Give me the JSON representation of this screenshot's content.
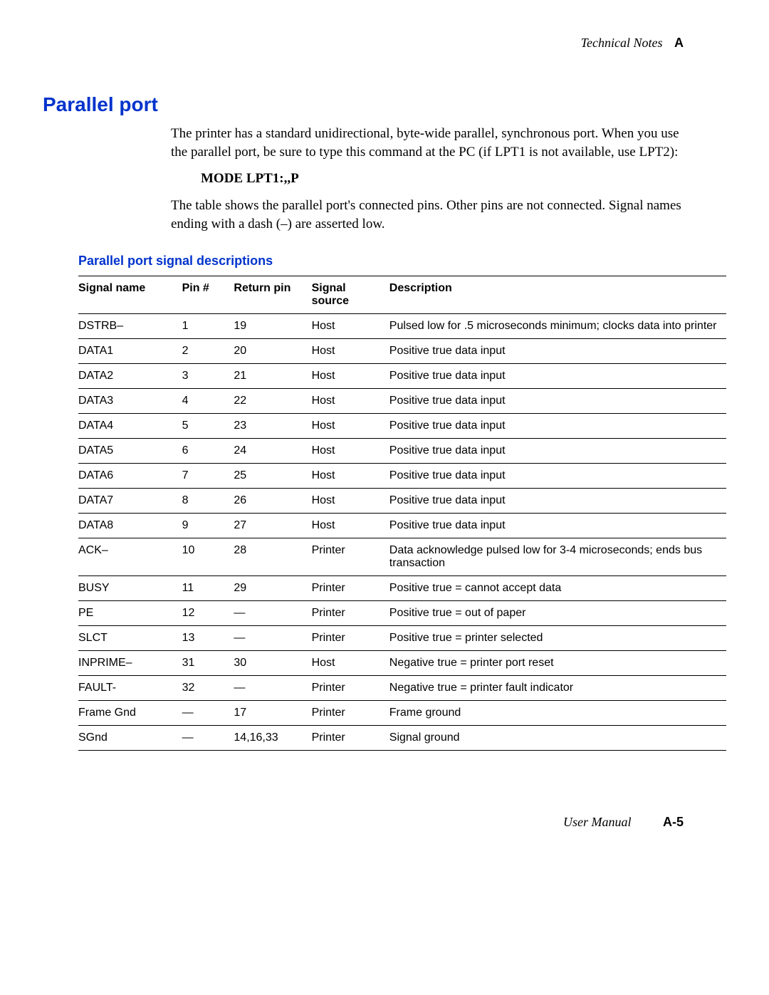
{
  "header": {
    "title": "Technical Notes",
    "appendix": "A"
  },
  "heading": "Parallel port",
  "intro_para": "The printer has a standard unidirectional, byte-wide parallel, synchronous port.  When you use the parallel port, be sure to type this command at the PC (if LPT1 is not available, use LPT2):",
  "mode_cmd": "MODE LPT1:,,P",
  "table_intro": "The table shows the parallel port's connected pins.  Other pins are not connected.  Signal names ending with a dash (–) are asserted low.",
  "table_caption": "Parallel port signal descriptions",
  "columns": {
    "c0": "Signal name",
    "c1": "Pin #",
    "c2": "Return pin",
    "c3": "Signal source",
    "c4": "Description"
  },
  "rows": [
    {
      "name": "DSTRB–",
      "pin": "1",
      "ret": "19",
      "src": "Host",
      "desc": "Pulsed low for .5 microseconds minimum; clocks data into printer"
    },
    {
      "name": "DATA1",
      "pin": "2",
      "ret": "20",
      "src": "Host",
      "desc": "Positive true data input"
    },
    {
      "name": "DATA2",
      "pin": "3",
      "ret": "21",
      "src": "Host",
      "desc": "Positive true data input"
    },
    {
      "name": "DATA3",
      "pin": "4",
      "ret": "22",
      "src": "Host",
      "desc": "Positive true data input"
    },
    {
      "name": "DATA4",
      "pin": "5",
      "ret": "23",
      "src": "Host",
      "desc": "Positive true data input"
    },
    {
      "name": "DATA5",
      "pin": "6",
      "ret": "24",
      "src": "Host",
      "desc": "Positive true data input"
    },
    {
      "name": "DATA6",
      "pin": "7",
      "ret": "25",
      "src": "Host",
      "desc": "Positive true data input"
    },
    {
      "name": "DATA7",
      "pin": "8",
      "ret": "26",
      "src": "Host",
      "desc": "Positive true data input"
    },
    {
      "name": "DATA8",
      "pin": "9",
      "ret": "27",
      "src": "Host",
      "desc": "Positive true data input"
    },
    {
      "name": "ACK–",
      "pin": "10",
      "ret": "28",
      "src": "Printer",
      "desc": "Data acknowledge pulsed low for 3-4 microseconds; ends bus transaction"
    },
    {
      "name": "BUSY",
      "pin": "11",
      "ret": "29",
      "src": "Printer",
      "desc": "Positive true = cannot accept data"
    },
    {
      "name": "PE",
      "pin": "12",
      "ret": "—",
      "src": "Printer",
      "desc": "Positive true = out of paper"
    },
    {
      "name": "SLCT",
      "pin": "13",
      "ret": "—",
      "src": "Printer",
      "desc": "Positive true = printer selected"
    },
    {
      "name": "INPRIME–",
      "pin": "31",
      "ret": "30",
      "src": "Host",
      "desc": "Negative true = printer port reset"
    },
    {
      "name": "FAULT-",
      "pin": "32",
      "ret": "—",
      "src": "Printer",
      "desc": "Negative true = printer fault indicator"
    },
    {
      "name": "Frame Gnd",
      "pin": "—",
      "ret": "17",
      "src": "Printer",
      "desc": "Frame ground"
    },
    {
      "name": "SGnd",
      "pin": "—",
      "ret": "14,16,33",
      "src": "Printer",
      "desc": "Signal ground"
    }
  ],
  "footer": {
    "manual": "User Manual",
    "page": "A-5"
  }
}
